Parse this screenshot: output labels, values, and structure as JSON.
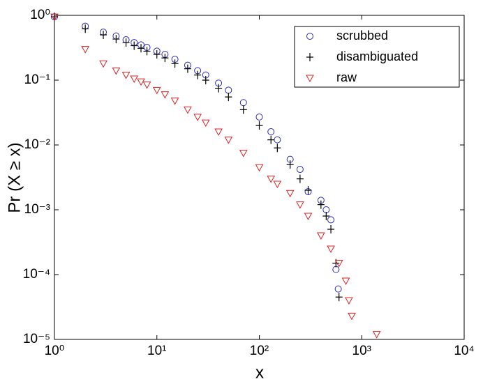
{
  "chart_data": {
    "type": "scatter",
    "xlabel": "x",
    "ylabel": "Pr (X ≥ x)",
    "xscale": "log",
    "yscale": "log",
    "xlim": [
      1,
      10000
    ],
    "ylim": [
      1e-05,
      1
    ],
    "xticks": [
      {
        "value": 1,
        "label": "10⁰"
      },
      {
        "value": 10,
        "label": "10¹"
      },
      {
        "value": 100,
        "label": "10²"
      },
      {
        "value": 1000,
        "label": "10³"
      },
      {
        "value": 10000,
        "label": "10⁴"
      }
    ],
    "yticks": [
      {
        "value": 1e-05,
        "label": "10⁻⁵"
      },
      {
        "value": 0.0001,
        "label": "10⁻⁴"
      },
      {
        "value": 0.001,
        "label": "10⁻³"
      },
      {
        "value": 0.01,
        "label": "10⁻²"
      },
      {
        "value": 0.1,
        "label": "10⁻¹"
      },
      {
        "value": 1,
        "label": "10⁰"
      }
    ],
    "legend": "upper right",
    "series": [
      {
        "name": "scrubbed",
        "color": "#2a2ab8",
        "marker": "o",
        "x": [
          1,
          2,
          3,
          4,
          5,
          6,
          7,
          8,
          10,
          12,
          15,
          20,
          25,
          30,
          40,
          50,
          70,
          100,
          130,
          150,
          200,
          250,
          300,
          400,
          450,
          500,
          560,
          590
        ],
        "values": [
          0.95,
          0.68,
          0.55,
          0.48,
          0.42,
          0.38,
          0.35,
          0.32,
          0.28,
          0.25,
          0.21,
          0.17,
          0.14,
          0.12,
          0.09,
          0.07,
          0.045,
          0.027,
          0.016,
          0.012,
          0.006,
          0.0042,
          0.0019,
          0.0014,
          0.001,
          0.0007,
          0.00012,
          6e-05
        ]
      },
      {
        "name": "disambiguated",
        "color": "#000000",
        "marker": "+",
        "x": [
          1,
          2,
          3,
          4,
          5,
          6,
          7,
          8,
          10,
          12,
          15,
          20,
          25,
          30,
          40,
          50,
          70,
          100,
          130,
          150,
          200,
          250,
          300,
          400,
          450,
          500,
          560,
          600
        ],
        "values": [
          0.95,
          0.62,
          0.5,
          0.43,
          0.38,
          0.34,
          0.31,
          0.28,
          0.25,
          0.22,
          0.18,
          0.15,
          0.12,
          0.1,
          0.075,
          0.055,
          0.035,
          0.02,
          0.012,
          0.009,
          0.005,
          0.003,
          0.002,
          0.0012,
          0.0008,
          0.0005,
          0.00015,
          4.5e-05
        ]
      },
      {
        "name": "raw",
        "color": "#dd2222",
        "marker": "v",
        "x": [
          1,
          2,
          3,
          4,
          5,
          6,
          7,
          8,
          10,
          12,
          15,
          20,
          25,
          30,
          40,
          50,
          70,
          100,
          130,
          150,
          200,
          250,
          300,
          400,
          500,
          600,
          700,
          750,
          800,
          1400
        ],
        "values": [
          0.95,
          0.3,
          0.18,
          0.14,
          0.12,
          0.105,
          0.095,
          0.085,
          0.07,
          0.06,
          0.048,
          0.035,
          0.027,
          0.022,
          0.016,
          0.012,
          0.0075,
          0.0045,
          0.003,
          0.0025,
          0.0018,
          0.0012,
          0.0008,
          0.0004,
          0.00025,
          0.00015,
          8e-05,
          4e-05,
          2.3e-05,
          1.2e-05
        ]
      }
    ]
  }
}
